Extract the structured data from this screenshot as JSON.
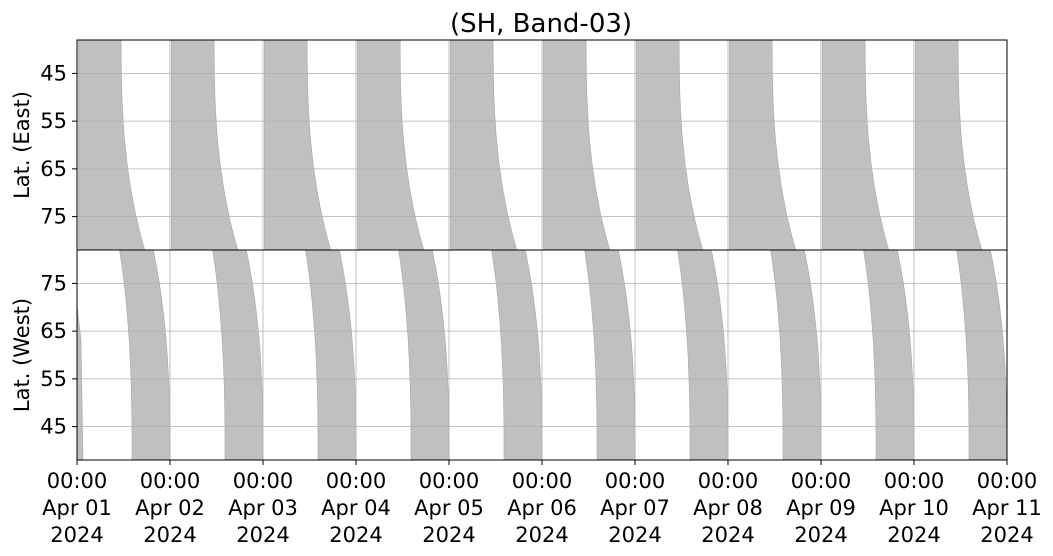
{
  "chart_data": {
    "type": "area",
    "title": "(SH, Band-03)",
    "x_range": [
      "2024-04-01 00:00",
      "2024-04-11 00:00"
    ],
    "x_tick_labels": [
      {
        "time": "00:00",
        "date": "Apr 01",
        "year": "2024"
      },
      {
        "time": "00:00",
        "date": "Apr 02",
        "year": "2024"
      },
      {
        "time": "00:00",
        "date": "Apr 03",
        "year": "2024"
      },
      {
        "time": "00:00",
        "date": "Apr 04",
        "year": "2024"
      },
      {
        "time": "00:00",
        "date": "Apr 05",
        "year": "2024"
      },
      {
        "time": "00:00",
        "date": "Apr 06",
        "year": "2024"
      },
      {
        "time": "00:00",
        "date": "Apr 07",
        "year": "2024"
      },
      {
        "time": "00:00",
        "date": "Apr 08",
        "year": "2024"
      },
      {
        "time": "00:00",
        "date": "Apr 09",
        "year": "2024"
      },
      {
        "time": "00:00",
        "date": "Apr 10",
        "year": "2024"
      },
      {
        "time": "00:00",
        "date": "Apr 11",
        "year": "2024"
      }
    ],
    "grid": true,
    "fill_color": "#c0c0c0",
    "panels": [
      {
        "name": "east",
        "ylabel": "Lat. (East)",
        "ylim": [
          38,
          82
        ],
        "y_inverted": true,
        "yticks": [
          45,
          55,
          65,
          75
        ],
        "ytick_labels": [
          "45",
          "55",
          "65",
          "75"
        ],
        "bands": [
          {
            "day": "2024-04-01",
            "start_offset_h": 0.35,
            "end_offset_at_top_h": 11.4,
            "end_offset_at_bottom_h": 17.5
          },
          {
            "day": "2024-04-02",
            "start_offset_h": 0.35,
            "end_offset_at_top_h": 11.4,
            "end_offset_at_bottom_h": 17.5
          },
          {
            "day": "2024-04-03",
            "start_offset_h": 0.35,
            "end_offset_at_top_h": 11.4,
            "end_offset_at_bottom_h": 17.5
          },
          {
            "day": "2024-04-04",
            "start_offset_h": 0.35,
            "end_offset_at_top_h": 11.4,
            "end_offset_at_bottom_h": 17.5
          },
          {
            "day": "2024-04-05",
            "start_offset_h": 0.35,
            "end_offset_at_top_h": 11.4,
            "end_offset_at_bottom_h": 17.5
          },
          {
            "day": "2024-04-06",
            "start_offset_h": 0.35,
            "end_offset_at_top_h": 11.4,
            "end_offset_at_bottom_h": 17.5
          },
          {
            "day": "2024-04-07",
            "start_offset_h": 0.35,
            "end_offset_at_top_h": 11.4,
            "end_offset_at_bottom_h": 17.5
          },
          {
            "day": "2024-04-08",
            "start_offset_h": 0.35,
            "end_offset_at_top_h": 11.4,
            "end_offset_at_bottom_h": 17.5
          },
          {
            "day": "2024-04-09",
            "start_offset_h": 0.35,
            "end_offset_at_top_h": 11.4,
            "end_offset_at_bottom_h": 17.5
          },
          {
            "day": "2024-04-10",
            "start_offset_h": 0.35,
            "end_offset_at_top_h": 11.4,
            "end_offset_at_bottom_h": 17.5
          }
        ]
      },
      {
        "name": "west",
        "ylabel": "Lat. (West)",
        "ylim": [
          38,
          82
        ],
        "y_inverted": false,
        "yticks": [
          45,
          55,
          65,
          75
        ],
        "ytick_labels": [
          "45",
          "55",
          "65",
          "75"
        ],
        "bands": [
          {
            "day": "2024-04-01",
            "start_offset_at_top_h": 11.0,
            "start_offset_at_bottom_h": 14.2,
            "end_offset_at_top_h": 19.7,
            "end_offset_at_bottom_h": 24.0
          },
          {
            "day": "2024-04-02",
            "start_offset_at_top_h": 11.0,
            "start_offset_at_bottom_h": 14.2,
            "end_offset_at_top_h": 19.7,
            "end_offset_at_bottom_h": 24.0
          },
          {
            "day": "2024-04-03",
            "start_offset_at_top_h": 11.0,
            "start_offset_at_bottom_h": 14.2,
            "end_offset_at_top_h": 19.7,
            "end_offset_at_bottom_h": 24.0
          },
          {
            "day": "2024-04-04",
            "start_offset_at_top_h": 11.0,
            "start_offset_at_bottom_h": 14.2,
            "end_offset_at_top_h": 19.7,
            "end_offset_at_bottom_h": 24.0
          },
          {
            "day": "2024-04-05",
            "start_offset_at_top_h": 11.0,
            "start_offset_at_bottom_h": 14.2,
            "end_offset_at_top_h": 19.7,
            "end_offset_at_bottom_h": 24.0
          },
          {
            "day": "2024-04-06",
            "start_offset_at_top_h": 11.0,
            "start_offset_at_bottom_h": 14.2,
            "end_offset_at_top_h": 19.7,
            "end_offset_at_bottom_h": 24.0
          },
          {
            "day": "2024-04-07",
            "start_offset_at_top_h": 11.0,
            "start_offset_at_bottom_h": 14.2,
            "end_offset_at_top_h": 19.7,
            "end_offset_at_bottom_h": 24.0
          },
          {
            "day": "2024-04-08",
            "start_offset_at_top_h": 11.0,
            "start_offset_at_bottom_h": 14.2,
            "end_offset_at_top_h": 19.7,
            "end_offset_at_bottom_h": 24.0
          },
          {
            "day": "2024-04-09",
            "start_offset_at_top_h": 11.0,
            "start_offset_at_bottom_h": 14.2,
            "end_offset_at_top_h": 19.7,
            "end_offset_at_bottom_h": 24.0
          },
          {
            "day": "2024-04-10",
            "start_offset_at_top_h": 11.0,
            "start_offset_at_bottom_h": 14.2,
            "end_offset_at_top_h": 19.7,
            "end_offset_at_bottom_h": 24.0
          }
        ]
      }
    ]
  }
}
